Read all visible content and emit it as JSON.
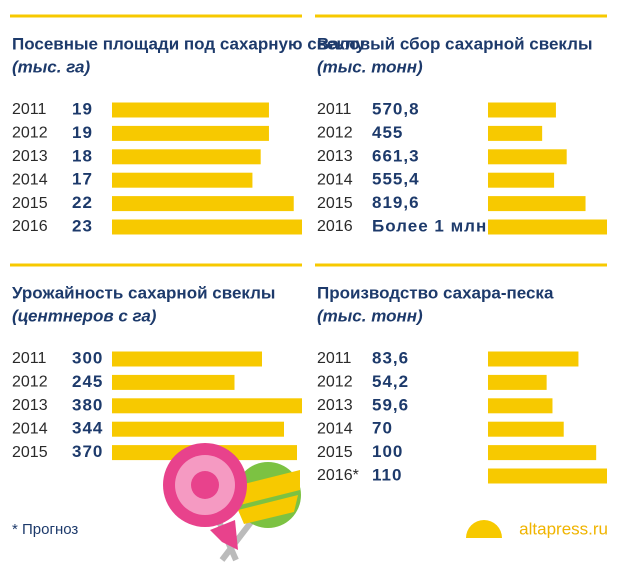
{
  "chart_data": [
    {
      "type": "bar",
      "title": "Посевные площади под сахарную свеклу",
      "unit": "(тыс. га)",
      "color": "#f7c900",
      "categories": [
        "2011",
        "2012",
        "2013",
        "2014",
        "2015",
        "2016"
      ],
      "values": [
        19,
        19,
        18,
        17,
        22,
        23
      ]
    },
    {
      "type": "bar",
      "title": "Валовый сбор сахарной свеклы",
      "unit": "(тыс. тонн)",
      "color": "#f7c900",
      "categories": [
        "2011",
        "2012",
        "2013",
        "2014",
        "2015",
        "2016"
      ],
      "values": [
        570.8,
        455,
        661.3,
        555.4,
        819.6,
        1000
      ],
      "value_labels": [
        "570,8",
        "455",
        "661,3",
        "555,4",
        "819,6",
        "Более 1 млн"
      ]
    },
    {
      "type": "bar",
      "title": "Урожайность сахарной свеклы",
      "unit": "(центнеров с га)",
      "color": "#f7c900",
      "categories": [
        "2011",
        "2012",
        "2013",
        "2014",
        "2015"
      ],
      "values": [
        300,
        245,
        380,
        344,
        370
      ]
    },
    {
      "type": "bar",
      "title": "Производство сахара-песка",
      "unit": "(тыс. тонн)",
      "color": "#f7c900",
      "categories": [
        "2011",
        "2012",
        "2013",
        "2014",
        "2015",
        "2016*"
      ],
      "values": [
        83.6,
        54.2,
        59.6,
        70,
        100,
        110
      ],
      "value_labels": [
        "83,6",
        "54,2",
        "59,6",
        "70",
        "100",
        "110"
      ]
    }
  ],
  "footnote": "* Прогноз",
  "source": "altapress.ru"
}
